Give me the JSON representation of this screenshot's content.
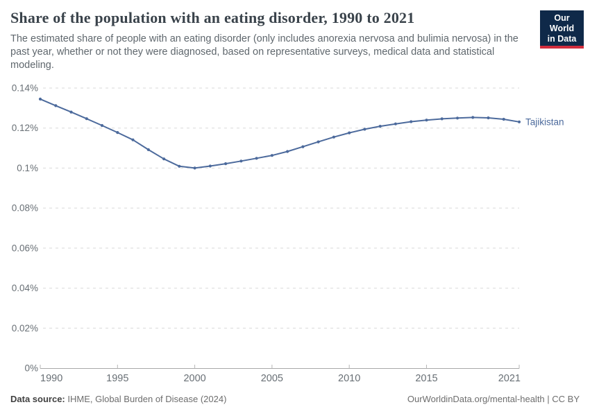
{
  "header": {
    "title": "Share of the population with an eating disorder, 1990 to 2021",
    "subtitle": "The estimated share of people with an eating disorder (only includes anorexia nervosa and bulimia nervosa) in the past year, whether or not they were diagnosed, based on representative surveys, medical data and statistical modeling.",
    "logo": {
      "line1": "Our World",
      "line2": "in Data",
      "bg_color": "#0f2949",
      "accent_color": "#d22d3d"
    }
  },
  "chart_data": {
    "type": "line",
    "title": "Share of the population with an eating disorder, 1990 to 2021",
    "xlabel": "",
    "ylabel": "",
    "unit": "%",
    "xlim": [
      1990,
      2021
    ],
    "ylim": [
      0,
      0.14
    ],
    "grid": "horizontal-dashed",
    "legend_position": "end-of-line-label",
    "x_ticks": [
      1990,
      1995,
      2000,
      2005,
      2010,
      2015,
      2021
    ],
    "y_ticks": [
      {
        "value": 0,
        "label": "0%"
      },
      {
        "value": 0.02,
        "label": "0.02%"
      },
      {
        "value": 0.04,
        "label": "0.04%"
      },
      {
        "value": 0.06,
        "label": "0.06%"
      },
      {
        "value": 0.08,
        "label": "0.08%"
      },
      {
        "value": 0.1,
        "label": "0.1%"
      },
      {
        "value": 0.12,
        "label": "0.12%"
      },
      {
        "value": 0.14,
        "label": "0.14%"
      }
    ],
    "x": [
      1990,
      1991,
      1992,
      1993,
      1994,
      1995,
      1996,
      1997,
      1998,
      1999,
      2000,
      2001,
      2002,
      2003,
      2004,
      2005,
      2006,
      2007,
      2008,
      2009,
      2010,
      2011,
      2012,
      2013,
      2014,
      2015,
      2016,
      2017,
      2018,
      2019,
      2020,
      2021
    ],
    "series": [
      {
        "name": "Tajikistan",
        "color": "#4c6a9c",
        "values": [
          0.1345,
          0.1312,
          0.128,
          0.1247,
          0.1213,
          0.1178,
          0.1141,
          0.1092,
          0.1046,
          0.1009,
          0.1,
          0.101,
          0.1022,
          0.1035,
          0.1049,
          0.1063,
          0.1083,
          0.1107,
          0.1131,
          0.1155,
          0.1176,
          0.1194,
          0.1209,
          0.1221,
          0.1232,
          0.124,
          0.1246,
          0.125,
          0.1253,
          0.1251,
          0.1244,
          0.1231
        ]
      }
    ]
  },
  "footer": {
    "source_label": "Data source:",
    "source_value": "IHME, Global Burden of Disease (2024)",
    "right_text": "OurWorldinData.org/mental-health | CC BY"
  },
  "colors": {
    "line": "#4c6a9c",
    "grid": "#d9d9d9",
    "axis": "#a8a8a8",
    "tick_mark": "#b5b5b5",
    "tick_text": "#686f75",
    "series_label": "#4c6a9c"
  }
}
